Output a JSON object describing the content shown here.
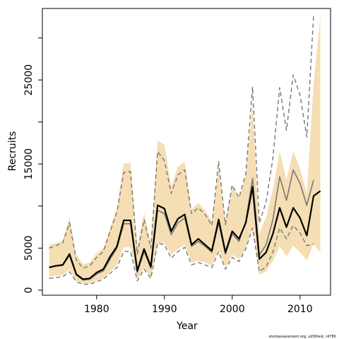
{
  "chart_data": {
    "type": "line",
    "xlabel": "Year",
    "ylabel": "Recruits",
    "xlim": [
      1972,
      2014.5
    ],
    "ylim": [
      -600,
      33500
    ],
    "x_ticks": [
      1980,
      1990,
      2000,
      2010
    ],
    "y_ticks": [
      0,
      5000,
      10000,
      15000,
      20000,
      25000,
      30000
    ],
    "y_tick_labels": [
      {
        "value": 0,
        "label": "0"
      },
      {
        "value": 5000,
        "label": "5000"
      },
      {
        "value": 15000,
        "label": "15000"
      },
      {
        "value": 25000,
        "label": "25000"
      }
    ],
    "credit": "stockassessment.org, sd30test, r4780",
    "colors": {
      "band": "#f5deb3",
      "estimate": "#000000",
      "comparison": "#777777",
      "comparison_ci": "#777777"
    },
    "series": [
      {
        "x": [
          1973,
          1974,
          1975,
          1976,
          1977,
          1978,
          1979,
          1980,
          1981,
          1982,
          1983,
          1984,
          1985,
          1986,
          1987,
          1988,
          1989,
          1990,
          1991,
          1992,
          1993,
          1994,
          1995,
          1996,
          1997,
          1998,
          1999,
          2000,
          2001,
          2002,
          2003,
          2004,
          2005,
          2006,
          2007,
          2008,
          2009,
          2010,
          2011,
          2012,
          2013
        ],
        "values": [
          2700,
          2900,
          3000,
          4300,
          1900,
          1300,
          1400,
          2100,
          2500,
          4000,
          5200,
          8300,
          8300,
          2300,
          4900,
          2800,
          10100,
          9700,
          7000,
          8500,
          9000,
          5400,
          6100,
          5400,
          4700,
          8400,
          4500,
          7000,
          6100,
          8000,
          12300,
          3700,
          4500,
          6700,
          9800,
          7500,
          9800,
          8600,
          6500,
          11200,
          11800
        ]
      },
      {
        "x": [
          1973,
          1974,
          1975,
          1976,
          1977,
          1978,
          1979,
          1980,
          1981,
          1982,
          1983,
          1984,
          1985,
          1986,
          1987,
          1988,
          1989,
          1990,
          1991,
          1992,
          1993,
          1994,
          1995,
          1996,
          1997,
          1998,
          1999,
          2000,
          2001,
          2002,
          2003,
          2004,
          2005,
          2006,
          2007,
          2008,
          2009,
          2010,
          2011,
          2012
        ],
        "values": [
          2700,
          2850,
          2950,
          4100,
          1800,
          1200,
          1300,
          1900,
          2300,
          3700,
          5000,
          7900,
          7900,
          2100,
          4600,
          2600,
          9500,
          9100,
          6600,
          8000,
          8600,
          5200,
          5800,
          5200,
          4500,
          8000,
          4300,
          6700,
          5800,
          8200,
          13300,
          4200,
          5400,
          8400,
          13500,
          10700,
          14300,
          12700,
          10100,
          13100
        ]
      },
      {
        "x": [
          1973,
          1974,
          1975,
          1976,
          1977,
          1978,
          1979,
          1980,
          1981,
          1982,
          1983,
          1984,
          1985,
          1986,
          1987,
          1988,
          1989,
          1990,
          1991,
          1992,
          1993,
          1994,
          1995,
          1996,
          1997,
          1998,
          1999,
          2000,
          2001,
          2002,
          2003,
          2004,
          2005,
          2006,
          2007,
          2008,
          2009,
          2010,
          2011,
          2012
        ],
        "values": [
          5000,
          5300,
          5600,
          8000,
          3600,
          2600,
          2900,
          3900,
          4600,
          7000,
          9300,
          14000,
          14100,
          4300,
          8400,
          5000,
          16500,
          15400,
          11500,
          13700,
          14300,
          9100,
          9800,
          9000,
          7700,
          15300,
          7800,
          12500,
          11000,
          13800,
          24200,
          8000,
          10500,
          15700,
          24100,
          19000,
          25600,
          23200,
          18200,
          32700
        ]
      },
      {
        "x": [
          1973,
          1974,
          1975,
          1976,
          1977,
          1978,
          1979,
          1980,
          1981,
          1982,
          1983,
          1984,
          1985,
          1986,
          1987,
          1988,
          1989,
          1990,
          1991,
          1992,
          1993,
          1994,
          1995,
          1996,
          1997,
          1998,
          1999,
          2000,
          2001,
          2002,
          2003,
          2004,
          2005,
          2006,
          2007,
          2008,
          2009,
          2010,
          2011,
          2012
        ],
        "values": [
          1400,
          1500,
          1600,
          2200,
          1000,
          700,
          700,
          1000,
          1300,
          2000,
          2700,
          4600,
          4600,
          1100,
          2500,
          1400,
          5600,
          5400,
          3800,
          4600,
          5100,
          3000,
          3300,
          3000,
          2700,
          4600,
          2500,
          3900,
          3400,
          4900,
          7400,
          2200,
          2800,
          4500,
          7400,
          6100,
          7700,
          6800,
          5300,
          5500
        ]
      }
    ],
    "band": {
      "x": [
        1973,
        1974,
        1975,
        1976,
        1977,
        1978,
        1979,
        1980,
        1981,
        1982,
        1983,
        1984,
        1985,
        1986,
        1987,
        1988,
        1989,
        1990,
        1991,
        1992,
        1993,
        1994,
        1995,
        1996,
        1997,
        1998,
        1999,
        2000,
        2001,
        2002,
        2003,
        2004,
        2005,
        2006,
        2007,
        2008,
        2009,
        2010,
        2011,
        2012,
        2013
      ],
      "lower": [
        1600,
        1700,
        1800,
        2500,
        1100,
        800,
        800,
        1100,
        1400,
        2200,
        3000,
        5100,
        5100,
        1200,
        2700,
        1500,
        5600,
        5600,
        4200,
        4900,
        5400,
        3300,
        3500,
        3300,
        2900,
        4900,
        2700,
        4200,
        3700,
        5000,
        7700,
        1800,
        2200,
        3500,
        5200,
        4000,
        5300,
        4500,
        3500,
        5500,
        4500
      ],
      "upper": [
        5400,
        5600,
        5900,
        8700,
        4200,
        3100,
        3300,
        4400,
        5000,
        7400,
        9700,
        15100,
        15100,
        5200,
        9200,
        5400,
        17800,
        17300,
        12400,
        14700,
        15300,
        9600,
        10400,
        9500,
        8200,
        14700,
        8000,
        12400,
        11000,
        13600,
        22100,
        6800,
        8700,
        12000,
        16500,
        13100,
        16500,
        14500,
        11500,
        24500,
        32500
      ]
    }
  }
}
